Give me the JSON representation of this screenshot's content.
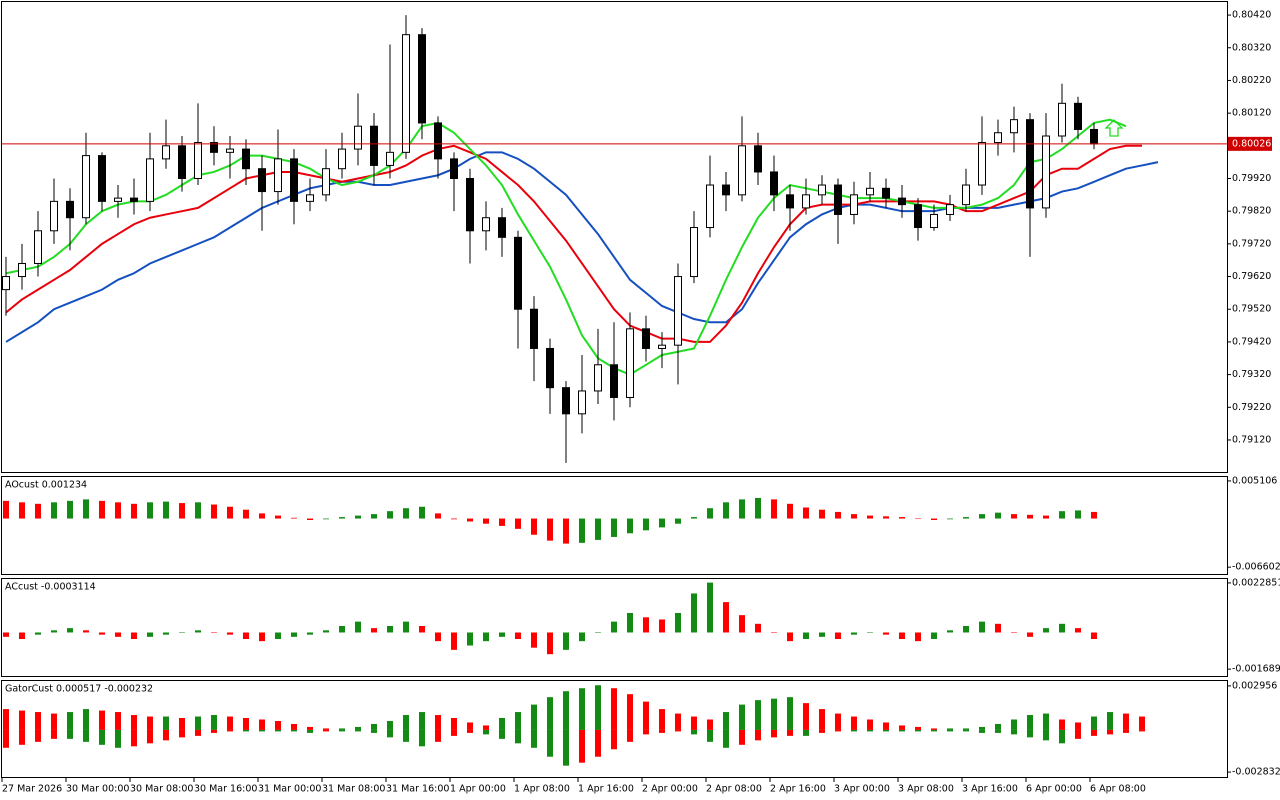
{
  "chart_data": [
    {
      "type": "candlestick",
      "categories": [
        "27 Mar 2026",
        null,
        null,
        null,
        "30 Mar 00:00",
        null,
        null,
        null,
        "30 Mar 08:00",
        null,
        null,
        null,
        "30 Mar 16:00",
        null,
        null,
        null,
        "31 Mar 00:00",
        null,
        null,
        null,
        "31 Mar 08:00",
        null,
        null,
        null,
        "31 Mar 16:00",
        null,
        null,
        null,
        "1 Apr 00:00",
        null,
        null,
        null,
        "1 Apr 08:00",
        null,
        null,
        null,
        "1 Apr 16:00",
        null,
        null,
        null,
        "2 Apr 00:00",
        null,
        null,
        null,
        "2 Apr 08:00",
        null,
        null,
        null,
        "2 Apr 16:00",
        null,
        null,
        null,
        "3 Apr 00:00",
        null,
        null,
        null,
        "3 Apr 08:00",
        null,
        null,
        null,
        "3 Apr 16:00",
        null,
        null,
        null,
        "6 Apr 00:00",
        null,
        null,
        null,
        "6 Apr 08:00",
        null,
        null,
        null,
        null
      ],
      "open": [
        0.7958,
        0.7962,
        0.7966,
        0.7976,
        0.7985,
        0.798,
        0.7999,
        0.7985,
        0.7986,
        0.7985,
        0.7998,
        0.8002,
        0.7992,
        0.8003,
        0.8,
        0.8001,
        0.7995,
        0.7988,
        0.7998,
        0.7985,
        0.7987,
        0.7995,
        0.8001,
        0.8008,
        0.7996,
        0.8,
        0.8036,
        0.8009,
        0.7998,
        0.7992,
        0.7976,
        0.798,
        0.7974,
        0.7952,
        0.794,
        0.7928,
        0.792,
        0.7927,
        0.7935,
        0.7925,
        0.7946,
        0.794,
        0.7941,
        0.7962,
        0.7977,
        0.799,
        0.7987,
        0.8002,
        0.7994,
        0.7987,
        0.7983,
        0.7987,
        0.799,
        0.7981,
        0.7987,
        0.7989,
        0.7986,
        0.7984,
        0.7977,
        0.7981,
        0.7984,
        0.799,
        0.8003,
        0.8006,
        0.801,
        0.7983,
        0.8005,
        0.8015,
        0.8007,
        null,
        null,
        null,
        null
      ],
      "high": [
        0.7968,
        0.7972,
        0.7982,
        0.7992,
        0.7989,
        0.8006,
        0.8,
        0.799,
        0.7992,
        0.8006,
        0.801,
        0.8005,
        0.8015,
        0.8008,
        0.8005,
        0.8004,
        0.7999,
        0.8007,
        0.8001,
        0.7992,
        0.8001,
        0.8006,
        0.8018,
        0.8012,
        0.8033,
        0.8042,
        0.8038,
        0.8011,
        0.8,
        0.7995,
        0.7985,
        0.7983,
        0.7976,
        0.7956,
        0.7943,
        0.793,
        0.7938,
        0.7946,
        0.7948,
        0.7951,
        0.795,
        0.7945,
        0.7966,
        0.7982,
        0.7999,
        0.7994,
        0.8011,
        0.8006,
        0.7999,
        0.799,
        0.7992,
        0.7993,
        0.7992,
        0.7991,
        0.7994,
        0.7992,
        0.799,
        0.7986,
        0.7984,
        0.7987,
        0.7995,
        0.8011,
        0.801,
        0.8014,
        0.8012,
        0.8012,
        0.8021,
        0.8017,
        0.8009,
        null,
        null,
        null,
        null
      ],
      "low": [
        0.795,
        0.7958,
        0.7962,
        0.7972,
        0.797,
        0.7978,
        0.7982,
        0.798,
        0.7981,
        0.7982,
        0.7995,
        0.7988,
        0.799,
        0.7996,
        0.7992,
        0.799,
        0.7976,
        0.7984,
        0.7978,
        0.7982,
        0.7985,
        0.7992,
        0.7996,
        0.799,
        0.7992,
        0.7998,
        0.8004,
        0.7992,
        0.7982,
        0.7966,
        0.797,
        0.7968,
        0.794,
        0.793,
        0.792,
        0.7905,
        0.7914,
        0.7923,
        0.7918,
        0.7922,
        0.7936,
        0.7934,
        0.7929,
        0.796,
        0.7974,
        0.7982,
        0.7985,
        0.799,
        0.7982,
        0.7976,
        0.7981,
        0.7984,
        0.7972,
        0.7978,
        0.7985,
        0.7983,
        0.798,
        0.7973,
        0.7976,
        0.7979,
        0.7982,
        0.7987,
        0.7999,
        0.8,
        0.7968,
        0.798,
        0.8003,
        0.8004,
        0.8001,
        null,
        null,
        null,
        null
      ],
      "close": [
        0.7962,
        0.7966,
        0.7976,
        0.7985,
        0.798,
        0.7999,
        0.7985,
        0.7986,
        0.7985,
        0.7998,
        0.8002,
        0.7992,
        0.8003,
        0.8,
        0.8001,
        0.7995,
        0.7988,
        0.7998,
        0.7985,
        0.7987,
        0.7995,
        0.8001,
        0.8008,
        0.7996,
        0.8,
        0.8036,
        0.8009,
        0.7998,
        0.7992,
        0.7976,
        0.798,
        0.7974,
        0.7952,
        0.794,
        0.7928,
        0.792,
        0.7927,
        0.7935,
        0.7925,
        0.7946,
        0.794,
        0.7941,
        0.7962,
        0.7977,
        0.799,
        0.7987,
        0.8002,
        0.7994,
        0.7987,
        0.7983,
        0.7987,
        0.799,
        0.7981,
        0.7987,
        0.7989,
        0.7986,
        0.7984,
        0.7977,
        0.7981,
        0.7984,
        0.799,
        0.8003,
        0.8006,
        0.801,
        0.7983,
        0.8005,
        0.8015,
        0.8007,
        0.80026,
        null,
        null,
        null,
        null
      ],
      "up_color": "#ffffff",
      "down_color": "#000000",
      "wick_color": "#000000",
      "series": [
        {
          "color": "#1450c0",
          "values": [
            0.7942,
            0.7945,
            0.7948,
            0.7952,
            0.7954,
            0.7956,
            0.7958,
            0.7961,
            0.7963,
            0.7966,
            0.7968,
            0.797,
            0.7972,
            0.7974,
            0.7977,
            0.798,
            0.7983,
            0.7985,
            0.7987,
            0.7989,
            0.799,
            0.7991,
            0.7991,
            0.799,
            0.799,
            0.7991,
            0.7992,
            0.7993,
            0.7995,
            0.7998,
            0.8,
            0.8,
            0.7998,
            0.7995,
            0.7991,
            0.7987,
            0.7981,
            0.7975,
            0.7968,
            0.7961,
            0.7957,
            0.7953,
            0.7951,
            0.7949,
            0.7948,
            0.7948,
            0.7952,
            0.796,
            0.7967,
            0.7974,
            0.7978,
            0.7981,
            0.7983,
            0.7984,
            0.7984,
            0.7983,
            0.7982,
            0.7982,
            0.7982,
            0.7983,
            0.7983,
            0.7983,
            0.7983,
            0.7984,
            0.7985,
            0.7986,
            0.7988,
            0.7989,
            0.7991,
            0.7993,
            0.7995,
            0.7996,
            0.7997
          ]
        },
        {
          "color": "#e8000b",
          "values": [
            0.7951,
            0.7955,
            0.7958,
            0.7961,
            0.7964,
            0.7968,
            0.7972,
            0.7975,
            0.7978,
            0.798,
            0.7981,
            0.7982,
            0.7983,
            0.7986,
            0.7989,
            0.7992,
            0.7993,
            0.7994,
            0.7994,
            0.7993,
            0.7992,
            0.7991,
            0.7992,
            0.7993,
            0.7994,
            0.7996,
            0.7999,
            0.8001,
            0.8002,
            0.8,
            0.7998,
            0.7994,
            0.799,
            0.7985,
            0.7979,
            0.7973,
            0.7966,
            0.7959,
            0.7952,
            0.7947,
            0.7945,
            0.7943,
            0.7943,
            0.7942,
            0.7942,
            0.7947,
            0.7954,
            0.7963,
            0.7971,
            0.7978,
            0.7983,
            0.7984,
            0.7984,
            0.7984,
            0.7985,
            0.7985,
            0.7985,
            0.7985,
            0.7985,
            0.7984,
            0.7982,
            0.7982,
            0.7984,
            0.7986,
            0.7988,
            0.7993,
            0.7995,
            0.7995,
            0.7998,
            0.8001,
            0.8002,
            0.8002,
            null
          ]
        },
        {
          "color": "#22dd22",
          "values": [
            0.7963,
            0.7964,
            0.7965,
            0.7968,
            0.7972,
            0.7978,
            0.7982,
            0.7984,
            0.7985,
            0.7985,
            0.7987,
            0.799,
            0.7993,
            0.7994,
            0.7996,
            0.7999,
            0.7999,
            0.7998,
            0.7997,
            0.7995,
            0.7992,
            0.799,
            0.7991,
            0.7993,
            0.7996,
            0.8001,
            0.8008,
            0.8009,
            0.8006,
            0.8001,
            0.7996,
            0.799,
            0.7981,
            0.7973,
            0.7965,
            0.7955,
            0.7944,
            0.7937,
            0.7934,
            0.7932,
            0.7935,
            0.7938,
            0.7939,
            0.794,
            0.795,
            0.7961,
            0.7971,
            0.798,
            0.7986,
            0.799,
            0.7989,
            0.7988,
            0.7987,
            0.7986,
            0.7986,
            0.7986,
            0.7985,
            0.7984,
            0.7983,
            0.7983,
            0.7983,
            0.7984,
            0.7986,
            0.799,
            0.7997,
            0.7998,
            0.8001,
            0.8005,
            0.8009,
            0.801,
            0.8008,
            null,
            null
          ]
        }
      ],
      "current_price": 0.80026,
      "current_price_color": "#d00000",
      "ylim": [
        0.79022,
        0.8046
      ],
      "yticks": [
        {
          "value": 0.7912,
          "label": "0.79120"
        },
        {
          "value": 0.7922,
          "label": "0.79220"
        },
        {
          "value": 0.7932,
          "label": "0.79320"
        },
        {
          "value": 0.7942,
          "label": "0.79420"
        },
        {
          "value": 0.7952,
          "label": "0.79520"
        },
        {
          "value": 0.7962,
          "label": "0.79620"
        },
        {
          "value": 0.7972,
          "label": "0.79720"
        },
        {
          "value": 0.7982,
          "label": "0.79820"
        },
        {
          "value": 0.7992,
          "label": "0.79920"
        },
        {
          "value": 0.8012,
          "label": "0.80120"
        },
        {
          "value": 0.8022,
          "label": "0.80220"
        },
        {
          "value": 0.8032,
          "label": "0.80320"
        },
        {
          "value": 0.8042,
          "label": "0.80420"
        }
      ]
    },
    {
      "type": "bar",
      "title": "AOcust 0.001234",
      "up_color": "#138a13",
      "down_color": "#ff0000",
      "values": [
        0.0024,
        0.0022,
        0.002,
        0.0022,
        0.0024,
        0.0026,
        0.0024,
        0.0022,
        0.002,
        0.0022,
        0.0023,
        0.0021,
        0.0022,
        0.0019,
        0.0016,
        0.0012,
        0.0007,
        0.0004,
        0.0001,
        -0.0002,
        -0.0001,
        0.0002,
        0.0004,
        0.0006,
        0.001,
        0.0014,
        0.0016,
        0.0007,
        -0.0001,
        -0.0004,
        -0.0007,
        -0.001,
        -0.0014,
        -0.0022,
        -0.003,
        -0.0034,
        -0.0033,
        -0.0029,
        -0.0025,
        -0.002,
        -0.0016,
        -0.0012,
        -0.0007,
        0.0002,
        0.0014,
        0.0022,
        0.0026,
        0.0028,
        0.0026,
        0.002,
        0.0015,
        0.0012,
        0.0009,
        0.0006,
        0.0004,
        0.0003,
        0.0002,
        0,
        -0.0002,
        -0.0001,
        0.0002,
        0.0006,
        0.0008,
        0.0006,
        0.0005,
        0.0004,
        0.001,
        0.0011,
        0.0009,
        null,
        null,
        null,
        null
      ],
      "ylim": [
        -0.00753,
        0.00564
      ],
      "yticks": [
        0.005106,
        -0.006602
      ]
    },
    {
      "type": "bar",
      "title": "ACcust -0.0003114",
      "up_color": "#138a13",
      "down_color": "#ff0000",
      "values": [
        -0.0002,
        -0.0003,
        -0.0001,
        0.0001,
        0.0002,
        0.0001,
        -0.0001,
        -0.0002,
        -0.0003,
        -0.0002,
        -0.0001,
        0,
        0.0001,
        0,
        -0.0001,
        -0.0003,
        -0.0004,
        -0.0003,
        -0.0002,
        -0.0001,
        0.0001,
        0.0003,
        0.0005,
        0.0002,
        0.0003,
        0.0005,
        0.0003,
        -0.0004,
        -0.0008,
        -0.0006,
        -0.0004,
        -0.0002,
        -0.0003,
        -0.0007,
        -0.001,
        -0.0008,
        -0.0004,
        0,
        0.0005,
        0.0009,
        0.0007,
        0.0006,
        0.0009,
        0.0018,
        0.0023,
        0.0014,
        0.0008,
        0.0004,
        0,
        -0.0004,
        -0.0003,
        -0.0002,
        -0.0003,
        -0.0001,
        0,
        -0.0001,
        -0.0003,
        -0.0004,
        -0.0003,
        0.0001,
        0.0003,
        0.0005,
        0.0004,
        0,
        -0.0002,
        0.0002,
        0.0004,
        0.0002,
        -0.0003,
        null,
        null,
        null,
        null
      ],
      "ylim": [
        -0.002006,
        0.002466
      ],
      "yticks": [
        0.0022851,
        -0.0016896
      ]
    },
    {
      "type": "gator",
      "title": "GatorCust 0.000517 -0.000232",
      "up_color": "#138a13",
      "down_color": "#ff0000",
      "series": [
        {
          "values": [
            0.0014,
            0.0013,
            0.0012,
            0.0011,
            0.0012,
            0.0014,
            0.0013,
            0.0012,
            0.001,
            0.0009,
            0.0009,
            0.0008,
            0.0009,
            0.001,
            0.0009,
            0.0008,
            0.0007,
            0.0006,
            0.0004,
            0.0002,
            0.0001,
            0.0001,
            0.0002,
            0.0004,
            0.0006,
            0.001,
            0.0012,
            0.001,
            0.0008,
            0.0005,
            0.0003,
            0.0008,
            0.0012,
            0.0017,
            0.0022,
            0.0026,
            0.0028,
            0.003,
            0.0028,
            0.0024,
            0.0019,
            0.0014,
            0.0011,
            0.0009,
            0.0007,
            0.0012,
            0.0017,
            0.002,
            0.0021,
            0.0022,
            0.0018,
            0.0014,
            0.0011,
            0.0009,
            0.0007,
            0.0005,
            0.0003,
            0.0002,
            0.0001,
            0.0001,
            0.0001,
            0.0002,
            0.0004,
            0.0007,
            0.001,
            0.0011,
            0.0007,
            0.0005,
            0.0009,
            0.0012,
            0.0011,
            0.0009,
            null
          ]
        },
        {
          "values": [
            -0.0012,
            -0.001,
            -0.0008,
            -0.0006,
            -0.0006,
            -0.0008,
            -0.001,
            -0.0012,
            -0.0011,
            -0.0009,
            -0.0007,
            -0.0005,
            -0.0004,
            -0.0002,
            -0.0001,
            -0.0001,
            -0.0001,
            -0.0001,
            -0.0001,
            -0.0002,
            -0.0001,
            -0.0001,
            -0.0001,
            -0.0002,
            -0.0005,
            -0.0008,
            -0.0011,
            -0.0008,
            -0.0004,
            -0.0002,
            -0.0003,
            -0.0006,
            -0.0009,
            -0.0012,
            -0.0018,
            -0.0024,
            -0.0022,
            -0.0018,
            -0.0013,
            -0.0008,
            -0.0003,
            -0.0002,
            -0.0001,
            -0.0003,
            -0.0008,
            -0.0012,
            -0.001,
            -0.0007,
            -0.0005,
            -0.0004,
            -0.0004,
            -0.0002,
            -0.0001,
            -0.0001,
            -0.0001,
            -0.0001,
            -0.0001,
            -0.0001,
            -0.0001,
            -0.0001,
            -0.0001,
            -0.0002,
            -0.0002,
            -0.0003,
            -0.0005,
            -0.0007,
            -0.0009,
            -0.0006,
            -0.0004,
            -0.0003,
            -0.0002,
            -0.0001,
            null
          ]
        }
      ],
      "ylim": [
        -0.003161,
        0.003285
      ],
      "yticks": [
        0.002956,
        -0.002832
      ]
    }
  ]
}
